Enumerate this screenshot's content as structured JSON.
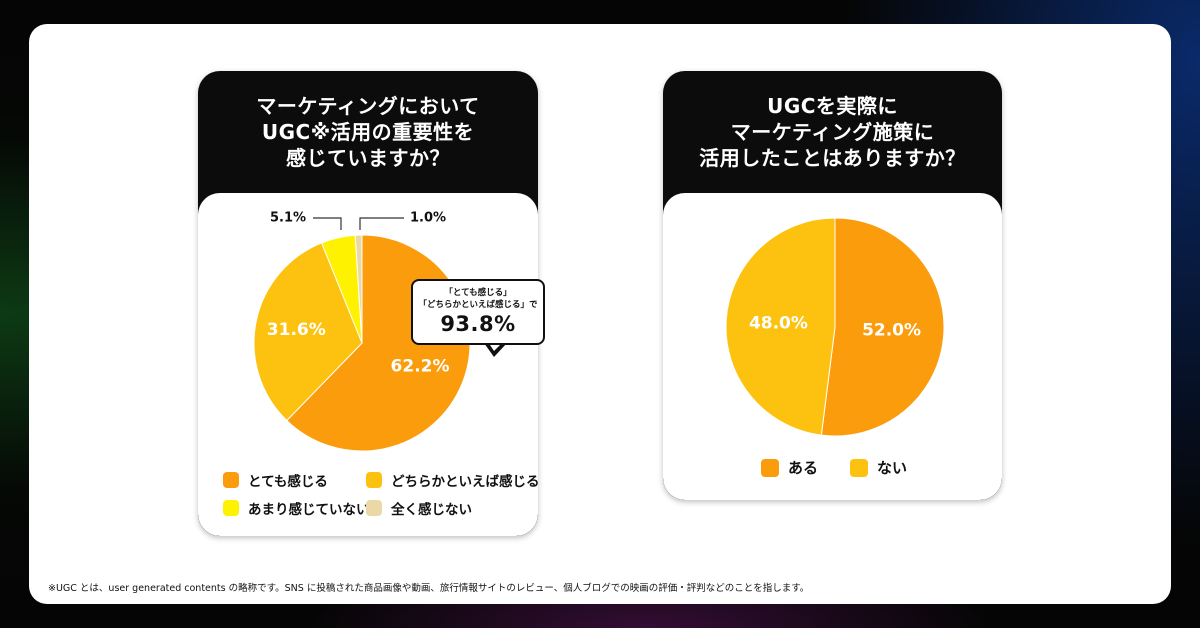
{
  "footnote": "※UGC とは、user generated contents の略称です。SNS に投稿された商品画像や動画、旅行情報サイトのレビュー、個人ブログでの映画の評価・評判などのことを指します。",
  "chart_data": [
    {
      "type": "pie",
      "title_lines": [
        "マーケティングにおいて",
        "UGC※活用の重要性を",
        "感じていますか？"
      ],
      "categories": [
        "とても感じる",
        "どちらかといえば感じる",
        "あまり感じていない",
        "全く感じない"
      ],
      "values": [
        62.2,
        31.6,
        5.1,
        1.0
      ],
      "value_labels": [
        "62.2%",
        "31.6%",
        "5.1%",
        "1.0%"
      ],
      "colors": [
        "#fb9c0c",
        "#fdc20f",
        "#fff200",
        "#ead9a7"
      ],
      "legend": "bottom",
      "callout": {
        "lines": [
          "「とても感じる」",
          "「どちらかといえば感じる」で"
        ],
        "value": "93.8%"
      }
    },
    {
      "type": "pie",
      "title_lines": [
        "UGCを実際に",
        "マーケティング施策に",
        "活用したことはありますか？"
      ],
      "categories": [
        "ある",
        "ない"
      ],
      "values": [
        52.0,
        48.0
      ],
      "value_labels": [
        "52.0%",
        "48.0%"
      ],
      "colors": [
        "#fb9c0c",
        "#fdc20f"
      ],
      "legend": "bottom"
    }
  ]
}
